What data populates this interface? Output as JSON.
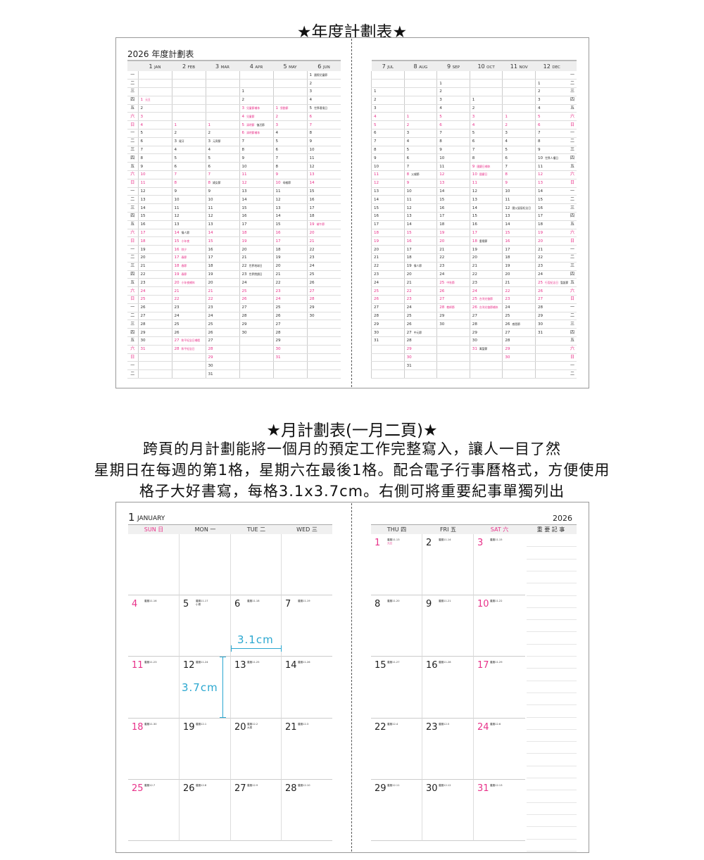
{
  "headings": {
    "annual": "★年度計劃表★",
    "monthly": "★月計劃表(一月二頁)★",
    "description": [
      "跨頁的月計劃能將一個月的預定工作完整寫入，讓人一目了然",
      "星期日在每週的第1格，星期六在最後1格。配合電子行事曆格式，方便使用",
      "格子大好書寫，每格3.1x3.7cm。右側可將重要紀事單獨列出"
    ]
  },
  "colors": {
    "accent": "#e8328a",
    "measure": "#2aa7d0",
    "header_bg": "#eeeeee"
  },
  "annual": {
    "title": "2026 年度計劃表",
    "weekdays": [
      "一",
      "二",
      "三",
      "四",
      "五",
      "六",
      "日"
    ],
    "left_months": [
      {
        "num": "1",
        "abbr": "JAN",
        "first": 3,
        "days": 31,
        "events": [
          {
            "d": 1,
            "name": "元旦",
            "off": true
          }
        ]
      },
      {
        "num": "2",
        "abbr": "FEB",
        "first": 6,
        "days": 28,
        "events": [
          {
            "d": 3,
            "name": "尾牙",
            "off": false
          },
          {
            "d": 14,
            "name": "情人節",
            "off": false
          },
          {
            "d": 15,
            "name": "小年夜",
            "off": true
          },
          {
            "d": 16,
            "name": "除夕",
            "off": true
          },
          {
            "d": 17,
            "name": "春節",
            "off": true
          },
          {
            "d": 18,
            "name": "春節",
            "off": true
          },
          {
            "d": 19,
            "name": "春節",
            "off": true
          },
          {
            "d": 20,
            "name": "小年夜補休",
            "off": true
          },
          {
            "d": 27,
            "name": "和平紀念日補假",
            "off": true
          },
          {
            "d": 28,
            "name": "和平紀念日",
            "off": true
          }
        ]
      },
      {
        "num": "3",
        "abbr": "MAR",
        "first": 6,
        "days": 31,
        "events": [
          {
            "d": 3,
            "name": "元宵節",
            "off": false
          },
          {
            "d": 8,
            "name": "婦女節",
            "off": false
          }
        ]
      },
      {
        "num": "4",
        "abbr": "APR",
        "first": 2,
        "days": 30,
        "events": [
          {
            "d": 3,
            "name": "兒童節補休",
            "off": true
          },
          {
            "d": 4,
            "name": "兒童節",
            "off": true
          },
          {
            "d": 5,
            "name": "清明節",
            "off": true
          },
          {
            "d": 5,
            "name": "復活節",
            "off": false
          },
          {
            "d": 6,
            "name": "清明節補休",
            "off": true
          },
          {
            "d": 22,
            "name": "世界地球日",
            "off": false
          },
          {
            "d": 23,
            "name": "世界閱讀日",
            "off": false
          }
        ]
      },
      {
        "num": "5",
        "abbr": "MAY",
        "first": 4,
        "days": 31,
        "events": [
          {
            "d": 1,
            "name": "勞動節",
            "off": true
          },
          {
            "d": 10,
            "name": "母親節",
            "off": false
          }
        ]
      },
      {
        "num": "6",
        "abbr": "JUN",
        "first": 0,
        "days": 30,
        "events": [
          {
            "d": 1,
            "name": "國際兒童節",
            "off": false
          },
          {
            "d": 5,
            "name": "世界環境日",
            "off": false
          },
          {
            "d": 19,
            "name": "端午節",
            "off": true
          }
        ]
      }
    ],
    "right_months": [
      {
        "num": "7",
        "abbr": "JUL",
        "first": 2,
        "days": 31,
        "events": []
      },
      {
        "num": "8",
        "abbr": "AUG",
        "first": 5,
        "days": 31,
        "events": [
          {
            "d": 8,
            "name": "父親節",
            "off": false
          },
          {
            "d": 19,
            "name": "情人節",
            "off": false
          },
          {
            "d": 27,
            "name": "中元節",
            "off": false
          }
        ]
      },
      {
        "num": "9",
        "abbr": "SEP",
        "first": 1,
        "days": 30,
        "events": [
          {
            "d": 25,
            "name": "中秋節",
            "off": true
          },
          {
            "d": 28,
            "name": "教師節",
            "off": true
          }
        ]
      },
      {
        "num": "10",
        "abbr": "OCT",
        "first": 3,
        "days": 31,
        "events": [
          {
            "d": 9,
            "name": "國慶日補休",
            "off": true
          },
          {
            "d": 10,
            "name": "國慶日",
            "off": true
          },
          {
            "d": 18,
            "name": "重陽節",
            "off": false
          },
          {
            "d": 25,
            "name": "台灣光復節",
            "off": true
          },
          {
            "d": 26,
            "name": "台灣光復節補休",
            "off": true
          },
          {
            "d": 31,
            "name": "萬聖節",
            "off": false
          }
        ]
      },
      {
        "num": "11",
        "abbr": "NOV",
        "first": 5,
        "days": 30,
        "events": [
          {
            "d": 12,
            "name": "國父誕辰紀念日",
            "off": false
          },
          {
            "d": 26,
            "name": "感恩節",
            "off": false
          }
        ]
      },
      {
        "num": "12",
        "abbr": "DEC",
        "first": 1,
        "days": 31,
        "events": [
          {
            "d": 10,
            "name": "世界人權日",
            "off": false
          },
          {
            "d": 25,
            "name": "行憲紀念日",
            "off": true
          },
          {
            "d": 25,
            "name": "聖誕節",
            "off": false
          }
        ]
      }
    ]
  },
  "monthly": {
    "month_num": "1",
    "month_name": "JANUARY",
    "year": "2026",
    "notes_header": "重 要 記 事",
    "days_header": [
      {
        "en": "SUN",
        "zh": "日",
        "weekend": true
      },
      {
        "en": "MON",
        "zh": "一",
        "weekend": false
      },
      {
        "en": "TUE",
        "zh": "二",
        "weekend": false
      },
      {
        "en": "WED",
        "zh": "三",
        "weekend": false
      },
      {
        "en": "THU",
        "zh": "四",
        "weekend": false
      },
      {
        "en": "FRI",
        "zh": "五",
        "weekend": false
      },
      {
        "en": "SAT",
        "zh": "六",
        "weekend": true
      }
    ],
    "weeks": [
      [
        null,
        null,
        null,
        null,
        {
          "day": "1",
          "lunar": "農曆11.13",
          "note": "元旦",
          "holiday": true
        },
        {
          "day": "2",
          "lunar": "農曆11.14"
        },
        {
          "day": "3",
          "lunar": "農曆11.15"
        }
      ],
      [
        {
          "day": "4",
          "lunar": "農曆11.16"
        },
        {
          "day": "5",
          "lunar": "農曆11.17",
          "note": "小寒"
        },
        {
          "day": "6",
          "lunar": "農曆11.18"
        },
        {
          "day": "7",
          "lunar": "農曆11.19"
        },
        {
          "day": "8",
          "lunar": "農曆11.20"
        },
        {
          "day": "9",
          "lunar": "農曆11.21"
        },
        {
          "day": "10",
          "lunar": "農曆11.22"
        }
      ],
      [
        {
          "day": "11",
          "lunar": "農曆11.23"
        },
        {
          "day": "12",
          "lunar": "農曆11.24"
        },
        {
          "day": "13",
          "lunar": "農曆11.25"
        },
        {
          "day": "14",
          "lunar": "農曆11.26"
        },
        {
          "day": "15",
          "lunar": "農曆11.27"
        },
        {
          "day": "16",
          "lunar": "農曆11.28"
        },
        {
          "day": "17",
          "lunar": "農曆11.29"
        }
      ],
      [
        {
          "day": "18",
          "lunar": "農曆11.30"
        },
        {
          "day": "19",
          "lunar": "農曆12.1"
        },
        {
          "day": "20",
          "lunar": "農曆12.2",
          "note": "大寒"
        },
        {
          "day": "21",
          "lunar": "農曆12.3"
        },
        {
          "day": "22",
          "lunar": "農曆12.4"
        },
        {
          "day": "23",
          "lunar": "農曆12.5"
        },
        {
          "day": "24",
          "lunar": "農曆12.6"
        }
      ],
      [
        {
          "day": "25",
          "lunar": "農曆12.7"
        },
        {
          "day": "26",
          "lunar": "農曆12.8"
        },
        {
          "day": "27",
          "lunar": "農曆12.9"
        },
        {
          "day": "28",
          "lunar": "農曆12.10"
        },
        {
          "day": "29",
          "lunar": "農曆12.11"
        },
        {
          "day": "30",
          "lunar": "農曆12.12"
        },
        {
          "day": "31",
          "lunar": "農曆12.13"
        }
      ]
    ],
    "measure": {
      "width_label": "3.1cm",
      "height_label": "3.7cm"
    }
  }
}
